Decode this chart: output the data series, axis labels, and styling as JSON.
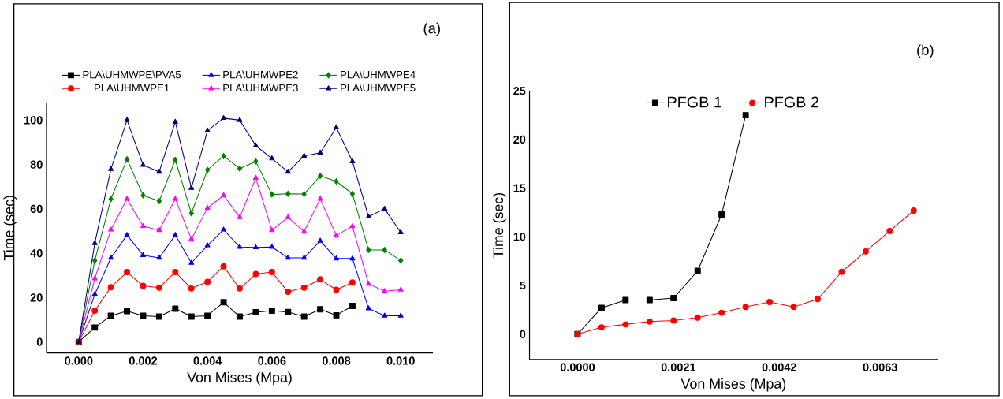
{
  "chart_data": [
    {
      "type": "line",
      "xlabel": "Von Mises (Mpa)",
      "ylabel": "Time (sec)",
      "annotations": [
        "(a)"
      ],
      "x": [
        0,
        0.0005,
        0.001,
        0.0015,
        0.002,
        0.0025,
        0.003,
        0.0035,
        0.004,
        0.0045,
        0.005,
        0.0055,
        0.006,
        0.0065,
        0.007,
        0.0075,
        0.008,
        0.0085,
        0.009,
        0.0095,
        0.01
      ],
      "xlim": [
        -0.001,
        0.011
      ],
      "ylim": [
        -5,
        108
      ],
      "xticks": [
        {
          "value": 0,
          "label": "0.000"
        },
        {
          "value": 0.002,
          "label": "0.002"
        },
        {
          "value": 0.004,
          "label": "0.004"
        },
        {
          "value": 0.006,
          "label": "0.006"
        },
        {
          "value": 0.008,
          "label": "0.008"
        },
        {
          "value": 0.01,
          "label": "0.010"
        }
      ],
      "yticks": [
        0,
        20,
        40,
        60,
        80,
        100
      ],
      "legend": "top",
      "series": [
        {
          "name": "PLA\\UHMWPE\\PVA5",
          "color": "#000000",
          "marker": "square",
          "values": [
            0,
            6.5,
            11.8,
            13.9,
            11.8,
            11.4,
            15,
            11.4,
            11.8,
            17.9,
            11.4,
            13.4,
            14.1,
            13.5,
            11.4,
            14.7,
            12,
            16.2,
            null,
            null,
            null
          ]
        },
        {
          "name": "PLA\\UHMWPE1",
          "color": "#ff0000",
          "marker": "circle",
          "values": [
            0,
            14.1,
            24.7,
            31.5,
            25.3,
            24.5,
            31.5,
            24.1,
            27.1,
            34.1,
            24.1,
            30.6,
            31.5,
            22.6,
            24.5,
            28.2,
            23.5,
            26.8,
            null,
            null,
            null
          ]
        },
        {
          "name": "PLA\\UHMWPE2",
          "color": "#0000ff",
          "marker": "triangle",
          "values": [
            0,
            21.5,
            37.9,
            48.2,
            39.1,
            37.9,
            48.2,
            35.6,
            43.5,
            50.6,
            42.8,
            42.6,
            42.8,
            37.9,
            37.9,
            45.6,
            37.6,
            37.6,
            15.1,
            11.8,
            11.8
          ]
        },
        {
          "name": "PLA\\UHMWPE3",
          "color": "#ff00ff",
          "marker": "triangle",
          "values": [
            0,
            28.6,
            50.6,
            64.5,
            52.2,
            50.4,
            64.5,
            46.4,
            60.4,
            66.1,
            56.2,
            73.9,
            50.4,
            56.2,
            49.8,
            64.5,
            48,
            52.2,
            26.2,
            22.9,
            23.5
          ]
        },
        {
          "name": "PLA\\UHMWPE4",
          "color": "#008000",
          "marker": "diamond",
          "values": [
            0,
            36.7,
            64.4,
            82.4,
            66.1,
            63.5,
            82.1,
            58,
            77.6,
            83.8,
            78.2,
            81.4,
            66.5,
            66.8,
            66.7,
            74.9,
            72.4,
            66.8,
            41.5,
            41.5,
            36.7
          ]
        },
        {
          "name": "PLA\\UHMWPE5",
          "color": "#000080",
          "marker": "triangle",
          "values": [
            0,
            44.5,
            77.9,
            100,
            79.8,
            76.7,
            99.2,
            69.4,
            95.3,
            100.9,
            100,
            88.5,
            82.7,
            76.7,
            83.9,
            85.3,
            96.7,
            81.4,
            56.5,
            60,
            49.4
          ]
        }
      ]
    },
    {
      "type": "line",
      "xlabel": "Von Mises (Mpa)",
      "ylabel": "Time (sec)",
      "annotations": [
        "(b)"
      ],
      "x": [
        0,
        0.0005,
        0.001,
        0.0015,
        0.002,
        0.0025,
        0.003,
        0.0035,
        0.004,
        0.0045,
        0.005,
        0.0055,
        0.006,
        0.0065,
        0.007
      ],
      "xlim": [
        -0.001,
        0.0075
      ],
      "ylim": [
        -2.6,
        25
      ],
      "xticks": [
        {
          "value": 0,
          "label": "0.0000"
        },
        {
          "value": 0.0021,
          "label": "0.0021"
        },
        {
          "value": 0.0042,
          "label": "0.0042"
        },
        {
          "value": 0.0063,
          "label": "0.0063"
        }
      ],
      "yticks": [
        0,
        5,
        10,
        15,
        20,
        25
      ],
      "legend": "top",
      "series": [
        {
          "name": "PFGB 1",
          "color": "#000000",
          "marker": "square",
          "values": [
            0,
            2.7,
            3.5,
            3.5,
            3.7,
            6.5,
            12.3,
            22.5,
            null,
            null,
            null,
            null,
            null,
            null,
            null
          ]
        },
        {
          "name": "PFGB 2",
          "color": "#ff0000",
          "marker": "circle",
          "values": [
            0,
            0.7,
            1.0,
            1.3,
            1.4,
            1.7,
            2.2,
            2.8,
            3.3,
            2.8,
            3.6,
            6.4,
            8.5,
            10.6,
            12.7
          ]
        }
      ]
    }
  ]
}
